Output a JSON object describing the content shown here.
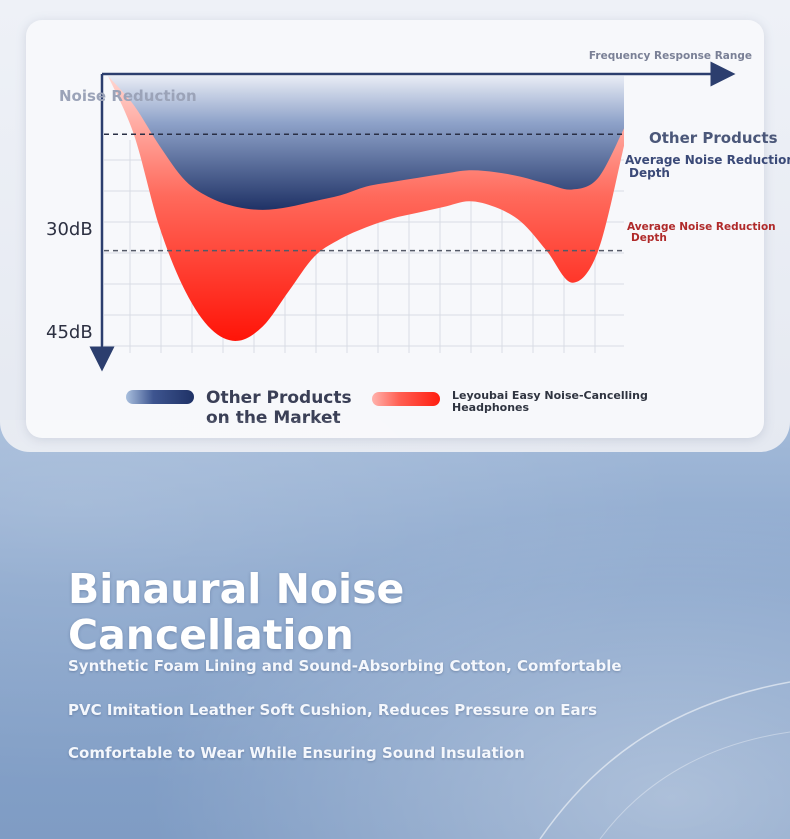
{
  "chart_data": {
    "type": "area",
    "title": "",
    "ylabel": "Noise Reduction",
    "xlabel": "Frequency Response Range",
    "y_ticks": [
      "30dB",
      "45dB"
    ],
    "y_range_db": [
      0,
      47
    ],
    "x_range": [
      0,
      100
    ],
    "x": [
      0,
      5,
      10,
      15,
      20,
      25,
      30,
      35,
      40,
      45,
      50,
      55,
      60,
      65,
      70,
      75,
      80,
      85,
      90,
      95,
      100
    ],
    "series": [
      {
        "name": "Other Products on the Market",
        "color": "#2b3f78",
        "values": [
          0,
          5,
          12,
          18,
          21,
          22.5,
          23,
          22.5,
          21.5,
          20.5,
          19,
          18.2,
          17.5,
          16.8,
          16.2,
          16.5,
          17.3,
          18.5,
          19.5,
          17.5,
          9
        ]
      },
      {
        "name": "Leyoubai Easy Noise-Cancelling Headphones",
        "color": "#ff2a1a",
        "values": [
          0,
          10,
          26,
          37,
          43.5,
          45.5,
          43,
          37,
          31,
          28,
          26,
          24.5,
          23.5,
          22.5,
          21.5,
          22.5,
          25,
          30,
          35.5,
          30,
          12
        ]
      }
    ],
    "reference_lines": [
      {
        "value": 10,
        "label": "Average Noise Reduction\nDepth",
        "series": "Other Products on the Market",
        "color": "#3b4a78"
      },
      {
        "value": 30,
        "label": "Average Noise Reduction\nDepth",
        "series": "Leyoubai Easy Noise-Cancelling Headphones",
        "color": "#b02a2a"
      }
    ],
    "annotations": {
      "other_products_callout": "Other Products"
    },
    "grid": true,
    "legend_position": "bottom"
  },
  "legend": {
    "other_label": "Other Products\non the Market",
    "ours_label": "Leyoubai Easy Noise-Cancelling\nHeadphones"
  },
  "headline": "Binaural Noise\n Cancellation",
  "features": [
    "Synthetic Foam Lining and Sound-Absorbing Cotton, Comfortable",
    "PVC Imitation Leather Soft Cushion, Reduces Pressure on Ears",
    "Comfortable to Wear While Ensuring Sound Insulation"
  ],
  "colors": {
    "other_series": "#2b3f78",
    "ours_series": "#ff2a1a",
    "axis": "#2c3e6e"
  }
}
